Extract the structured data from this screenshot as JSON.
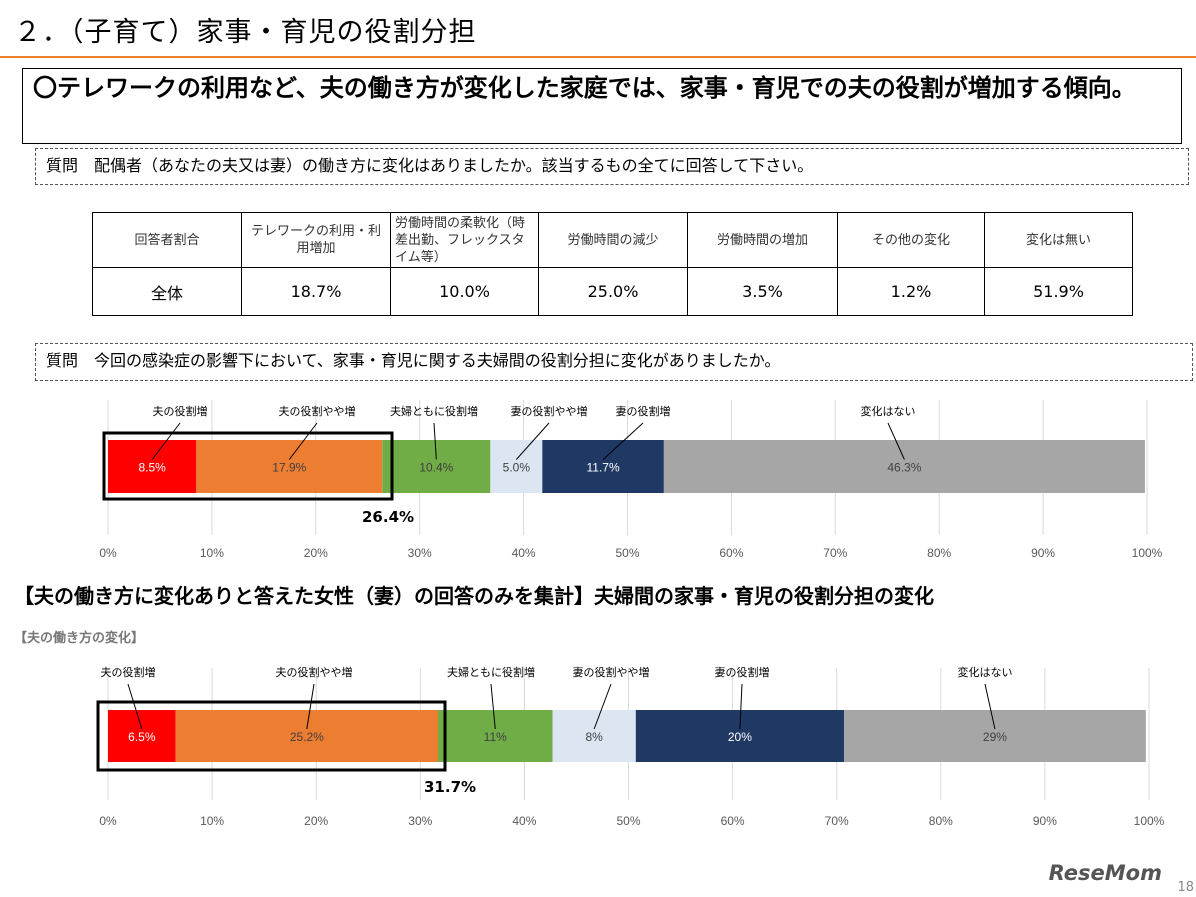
{
  "title": "２．（子育て）家事・育児の役割分担",
  "headline": "〇テレワークの利用など、夫の働き方が変化した家庭では、家事・育児での夫の役割が増加する傾向。",
  "question1": "質問　配偶者（あなたの夫又は妻）の働き方に変化はありましたか。該当するもの全てに回答して下さい。",
  "table": {
    "headers": [
      "回答者割合",
      "テレワークの利用・利用増加",
      "労働時間の柔軟化（時差出勤、フレックスタイム等）",
      "労働時間の減少",
      "労働時間の増加",
      "その他の変化",
      "変化は無い"
    ],
    "rows": [
      [
        "全体",
        "18.7%",
        "10.0%",
        "25.0%",
        "3.5%",
        "1.2%",
        "51.9%"
      ]
    ]
  },
  "question2": "質問　今回の感染症の影響下において、家事・育児に関する夫婦間の役割分担に変化がありましたか。",
  "section_title": "【夫の働き方に変化ありと答えた女性（妻）の回答のみを集計】夫婦間の家事・育児の役割分担の変化",
  "subtitle": "【夫の働き方の変化】",
  "logo": "ReseMom",
  "page_number": "18",
  "chart_data": [
    {
      "type": "bar",
      "orientation": "horizontal",
      "stacked": true,
      "xlim": [
        0,
        100
      ],
      "grid": true,
      "ticks": [
        "0%",
        "10%",
        "20%",
        "30%",
        "40%",
        "50%",
        "60%",
        "70%",
        "80%",
        "90%",
        "100%"
      ],
      "categories": [
        "夫の役割増",
        "夫の役割やや増",
        "夫婦ともに役割増",
        "妻の役割やや増",
        "妻の役割増",
        "変化はない"
      ],
      "values": [
        8.5,
        17.9,
        10.4,
        5.0,
        11.7,
        46.3
      ],
      "labels": [
        "8.5%",
        "17.9%",
        "10.4%",
        "5.0%",
        "11.7%",
        "46.3%"
      ],
      "colors": [
        "#ff0000",
        "#ed7d31",
        "#70ad47",
        "#dce6f2",
        "#1f3864",
        "#a6a6a6"
      ],
      "annotation": "26.4%"
    },
    {
      "type": "bar",
      "orientation": "horizontal",
      "stacked": true,
      "xlim": [
        0,
        100
      ],
      "grid": true,
      "ticks": [
        "0%",
        "10%",
        "20%",
        "30%",
        "40%",
        "50%",
        "60%",
        "70%",
        "80%",
        "90%",
        "100%"
      ],
      "categories": [
        "夫の役割増",
        "夫の役割やや増",
        "夫婦ともに役割増",
        "妻の役割やや増",
        "妻の役割増",
        "変化はない"
      ],
      "values": [
        6.5,
        25.2,
        11,
        8,
        20,
        29
      ],
      "labels": [
        "6.5%",
        "25.2%",
        "11%",
        "8%",
        "20%",
        "29%"
      ],
      "colors": [
        "#ff0000",
        "#ed7d31",
        "#70ad47",
        "#dce6f2",
        "#1f3864",
        "#a6a6a6"
      ],
      "annotation": "31.7%"
    }
  ]
}
